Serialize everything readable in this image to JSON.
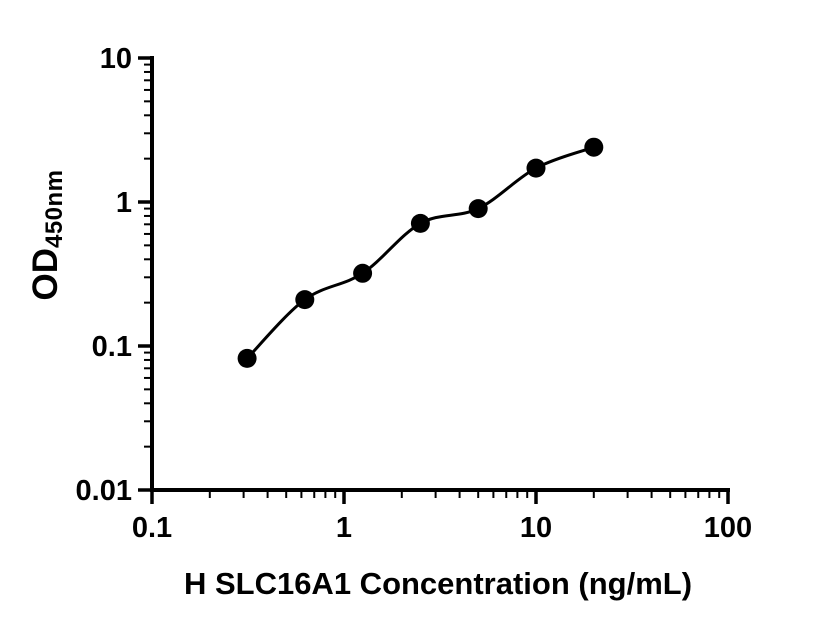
{
  "figure": {
    "background_color": "#ffffff"
  },
  "chart_data": {
    "type": "scatter",
    "subtype": "standard-curve-with-fit",
    "title": "",
    "xlabel": "H SLC16A1 Concentration (ng/mL)",
    "ylabel": "OD450nm",
    "ylabel_main": "OD",
    "ylabel_sub": "450nm",
    "x_scale": "log10",
    "y_scale": "log10",
    "xlim": [
      0.1,
      100
    ],
    "ylim": [
      0.01,
      10
    ],
    "x_ticks": [
      0.1,
      1,
      10,
      100
    ],
    "x_tick_labels": [
      "0.1",
      "1",
      "10",
      "100"
    ],
    "y_ticks": [
      0.01,
      0.1,
      1,
      10
    ],
    "y_tick_labels": [
      "0.01",
      "0.1",
      "1",
      "10"
    ],
    "grid": false,
    "legend": null,
    "marker_color": "#000000",
    "curve_color": "#000000",
    "points": [
      {
        "x": 0.313,
        "y": 0.082
      },
      {
        "x": 0.625,
        "y": 0.21
      },
      {
        "x": 1.25,
        "y": 0.32
      },
      {
        "x": 2.5,
        "y": 0.71
      },
      {
        "x": 5,
        "y": 0.9
      },
      {
        "x": 10,
        "y": 1.72
      },
      {
        "x": 20,
        "y": 2.4
      }
    ]
  }
}
